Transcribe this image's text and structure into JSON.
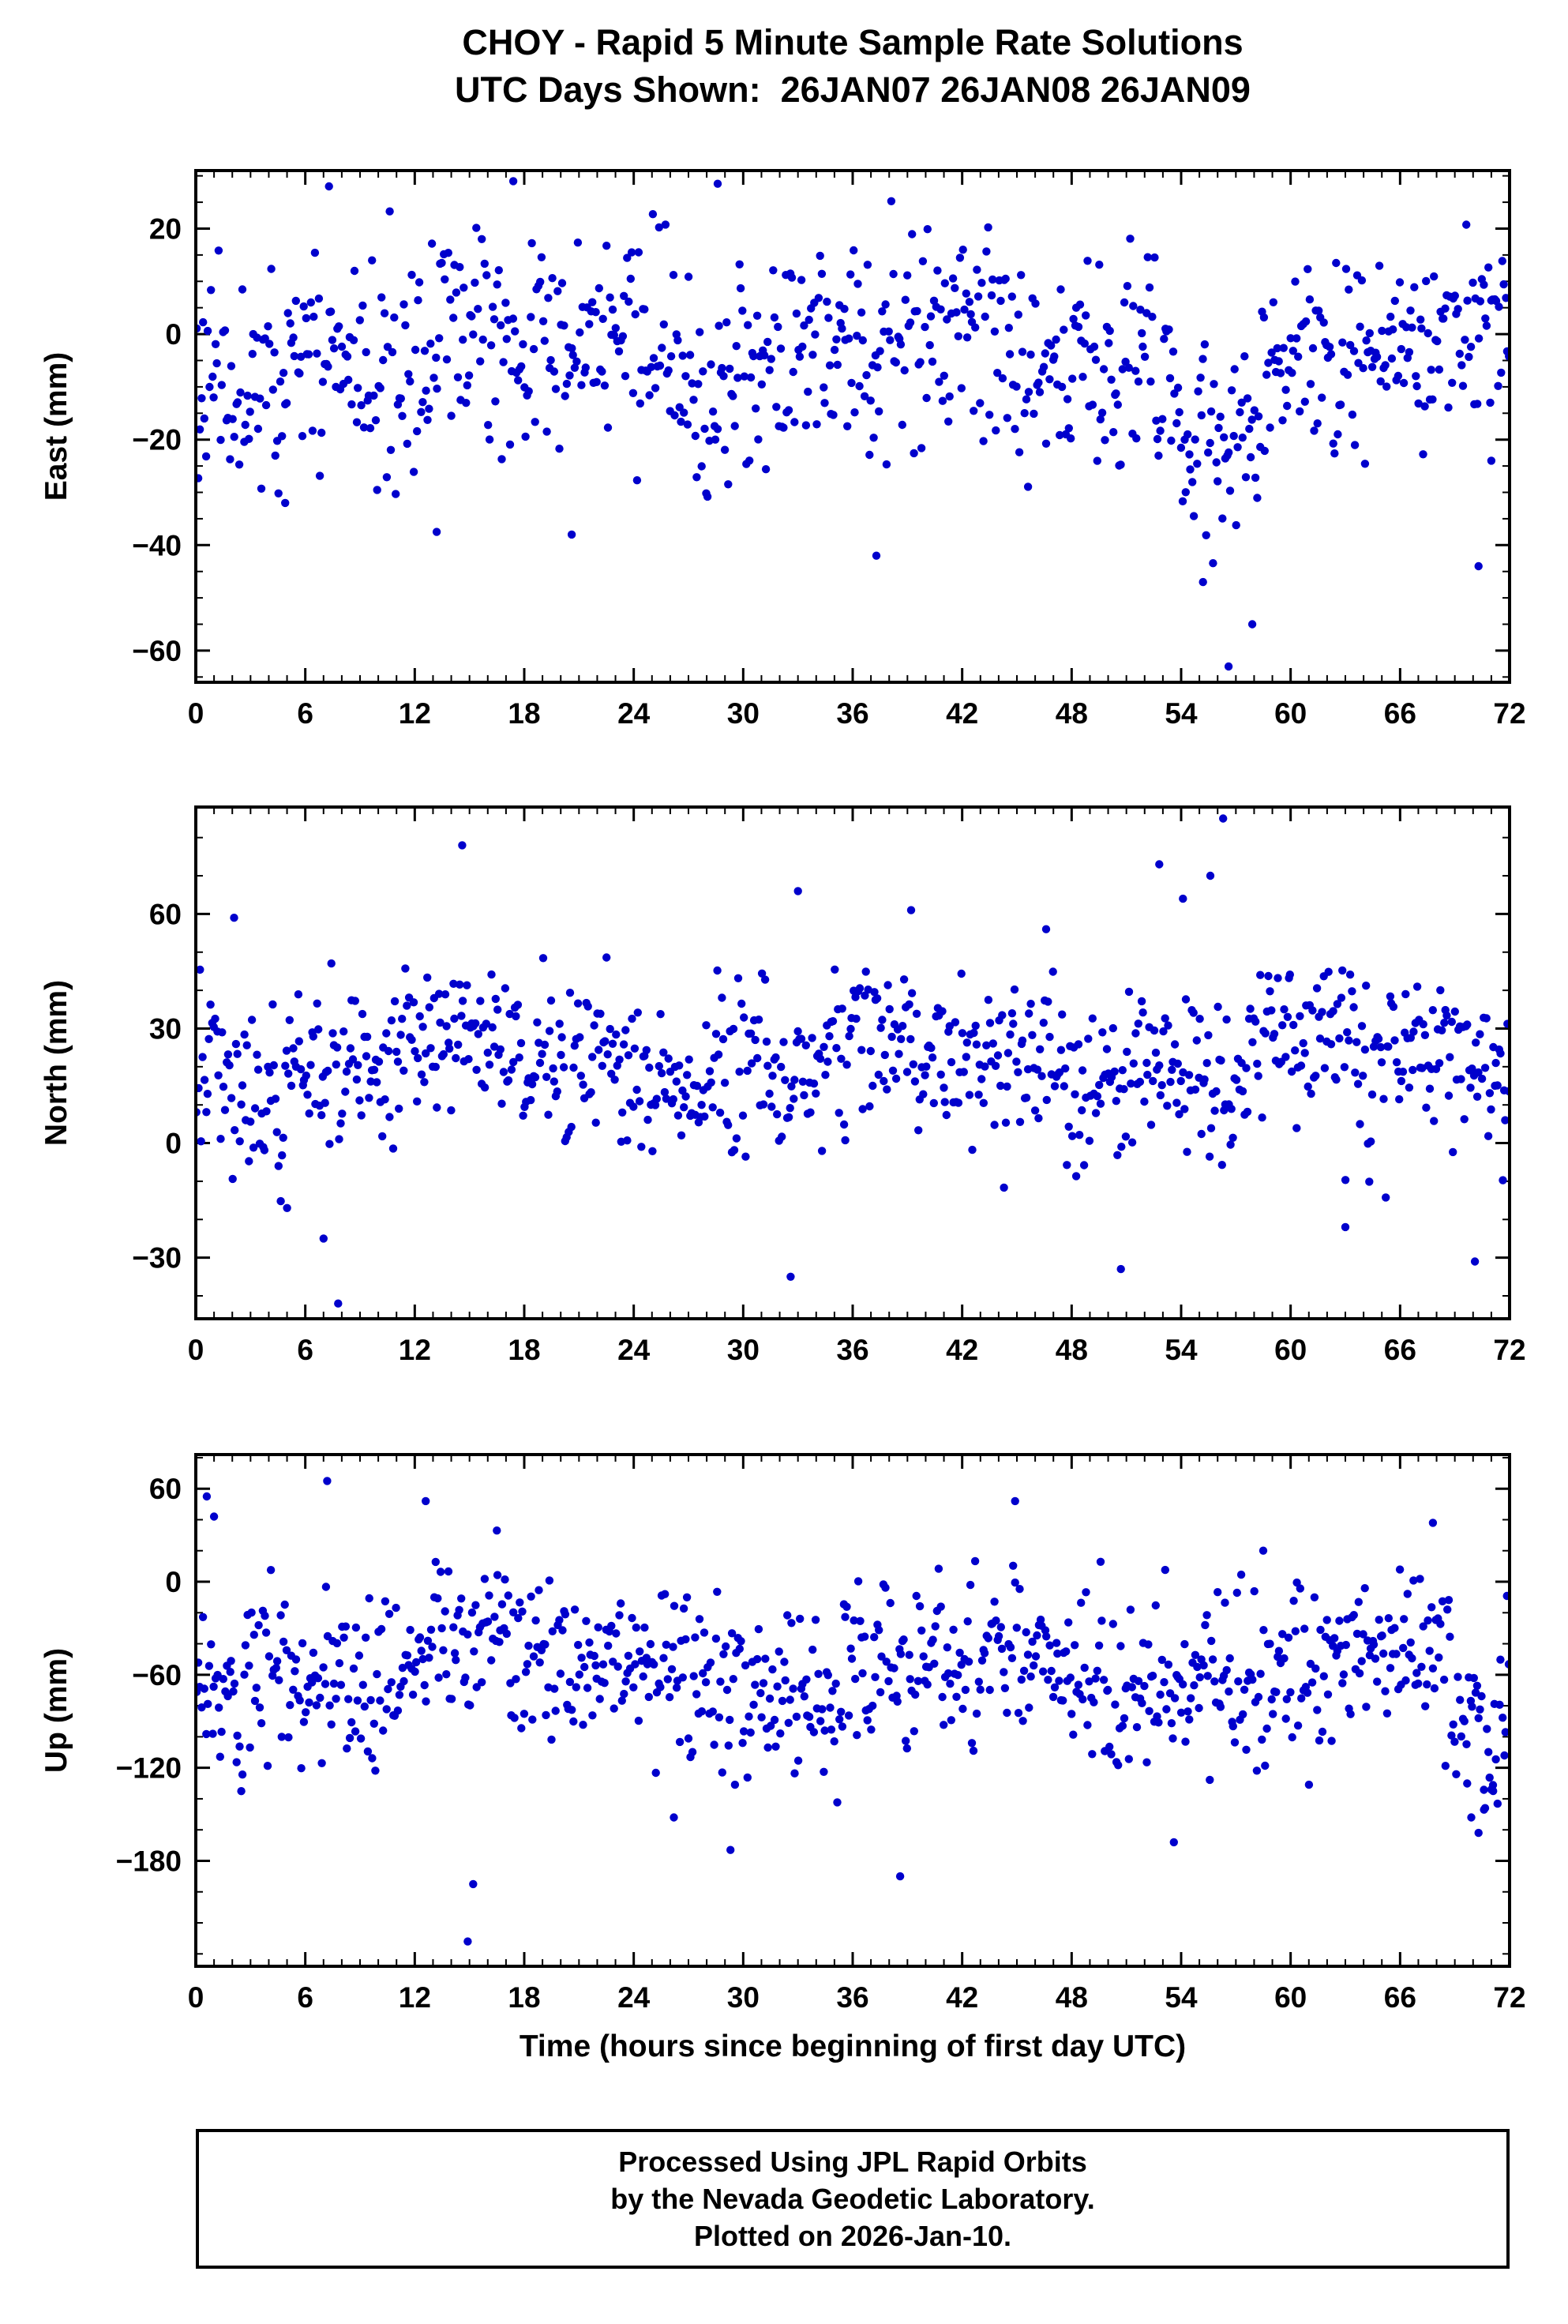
{
  "page": {
    "title_line1": "CHOY - Rapid 5 Minute Sample Rate Solutions",
    "title_line2": "UTC Days Shown:  26JAN07 26JAN08 26JAN09",
    "xaxis_title": "Time (hours since beginning of first day UTC)",
    "footer_lines": [
      "Processed Using JPL Rapid Orbits",
      "by the Nevada Geodetic Laboratory.",
      "Plotted on 2026-Jan-10."
    ]
  },
  "chart_data": {
    "type": "scatter",
    "title": "CHOY - Rapid 5 Minute Sample Rate Solutions",
    "subtitle": "UTC Days Shown:  26JAN07 26JAN08 26JAN09",
    "xlabel": "Time (hours since beginning of first day UTC)",
    "point_color": "#0000CC",
    "axis_color": "#000000",
    "x_range": [
      0,
      72
    ],
    "x_ticks": [
      0,
      6,
      12,
      18,
      24,
      30,
      36,
      42,
      48,
      54,
      60,
      66,
      72
    ],
    "x_minor_step": 1,
    "grid": false,
    "legend": "none",
    "panels": [
      {
        "id": "east",
        "ylabel": "East (mm)",
        "ylim": [
          -66,
          31
        ],
        "yticks": [
          20,
          0,
          -20,
          -40,
          -60
        ],
        "y_minor_step": 5,
        "gen": {
          "seed": 11,
          "n": 830,
          "mean": -4,
          "std": 10,
          "amp1": 4,
          "period1": 24,
          "amp2": 3,
          "period2": 9,
          "clamp": [
            -34,
            26
          ],
          "episodes": [
            {
              "x0": 53.6,
              "x1": 58.6,
              "dy": -14
            }
          ]
        },
        "outliers": [
          [
            7.3,
            28
          ],
          [
            17.4,
            29
          ],
          [
            28.6,
            28.5
          ],
          [
            4.9,
            -32
          ],
          [
            13.2,
            -37.5
          ],
          [
            20.6,
            -38
          ],
          [
            37.3,
            -42
          ],
          [
            55.2,
            -47
          ],
          [
            56.6,
            -63
          ],
          [
            57.9,
            -55
          ],
          [
            70.3,
            -44
          ],
          [
            71.0,
            -24
          ]
        ]
      },
      {
        "id": "north",
        "ylabel": "North (mm)",
        "ylim": [
          -46,
          88
        ],
        "yticks": [
          60,
          30,
          0,
          -30
        ],
        "y_minor_step": 10,
        "gen": {
          "seed": 22,
          "n": 830,
          "mean": 21,
          "std": 11,
          "amp1": 5,
          "period1": 24,
          "amp2": 3.5,
          "period2": 7.5,
          "clamp": [
            -20,
            49
          ],
          "episodes": []
        },
        "outliers": [
          [
            2.1,
            59
          ],
          [
            14.6,
            78
          ],
          [
            33.0,
            66
          ],
          [
            39.2,
            61
          ],
          [
            46.6,
            56
          ],
          [
            52.8,
            73
          ],
          [
            54.1,
            64
          ],
          [
            55.6,
            70
          ],
          [
            56.3,
            85
          ],
          [
            7.8,
            -42
          ],
          [
            5.0,
            -17
          ],
          [
            7.0,
            -25
          ],
          [
            32.6,
            -35
          ],
          [
            50.7,
            -33
          ],
          [
            63.0,
            -22
          ],
          [
            70.1,
            -31
          ]
        ]
      },
      {
        "id": "up",
        "ylabel": "Up (mm)",
        "ylim": [
          -248,
          82
        ],
        "yticks": [
          60,
          0,
          -60,
          -120,
          -180
        ],
        "y_minor_step": 20,
        "gen": {
          "seed": 33,
          "n": 830,
          "mean": -58,
          "std": 27,
          "amp1": 12,
          "period1": 24,
          "amp2": 8,
          "period2": 10,
          "clamp": [
            -138,
            22
          ],
          "episodes": [
            {
              "x0": 68.8,
              "x1": 71.4,
              "dy": -45
            },
            {
              "x0": 31.0,
              "x1": 36.0,
              "dy": -15
            }
          ]
        },
        "outliers": [
          [
            0.6,
            55
          ],
          [
            1.0,
            42
          ],
          [
            7.2,
            65
          ],
          [
            12.6,
            52
          ],
          [
            16.5,
            33
          ],
          [
            44.9,
            52
          ],
          [
            67.8,
            38
          ],
          [
            58.5,
            20
          ],
          [
            14.9,
            -232
          ],
          [
            15.2,
            -195
          ],
          [
            26.2,
            -152
          ],
          [
            29.3,
            -173
          ],
          [
            38.6,
            -190
          ],
          [
            53.6,
            -168
          ],
          [
            69.9,
            -152
          ],
          [
            70.3,
            -162
          ],
          [
            70.6,
            -147
          ],
          [
            71.1,
            -135
          ]
        ]
      }
    ]
  }
}
